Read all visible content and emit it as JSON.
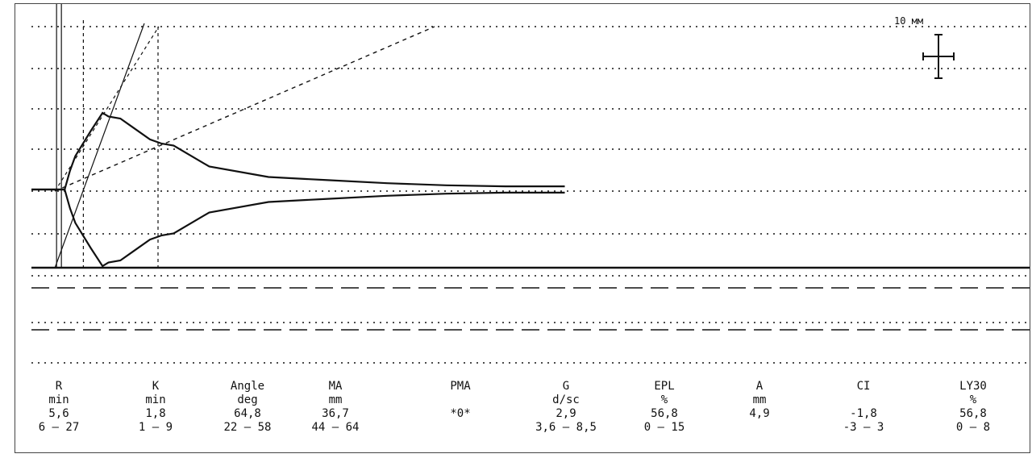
{
  "colors": {
    "line": "#111111",
    "background": "#ffffff"
  },
  "scale": {
    "label": "10 мм"
  },
  "chart_data": {
    "type": "line",
    "title": "",
    "grid": true,
    "scale_bar": "10 мм",
    "amplitude_mm": {
      "time_min": [
        0,
        2,
        4,
        5.6,
        6.5,
        7.4,
        10,
        12,
        13,
        15,
        17,
        20,
        22,
        24,
        30,
        40,
        50,
        60,
        70,
        80,
        90
      ],
      "upper_mm": [
        0,
        0,
        0,
        0,
        9,
        16,
        28,
        36.7,
        35,
        34,
        30,
        24,
        22,
        21,
        11,
        6,
        4.5,
        3,
        2,
        1.5,
        1.5
      ],
      "lower_mm": [
        0,
        0,
        0,
        0,
        -9,
        -16,
        -28,
        -36.7,
        -35,
        -34,
        -30,
        -24,
        -22,
        -21,
        -11,
        -6,
        -4.5,
        -3,
        -2,
        -1.5,
        -1.5
      ]
    }
  },
  "parameters": [
    {
      "name": "R",
      "unit": "min",
      "value": "5,6",
      "range": "6 — 27"
    },
    {
      "name": "K",
      "unit": "min",
      "value": "1,8",
      "range": "1 — 9"
    },
    {
      "name": "Angle",
      "unit": "deg",
      "value": "64,8",
      "range": "22 — 58"
    },
    {
      "name": "MA",
      "unit": "mm",
      "value": "36,7",
      "range": "44 — 64"
    },
    {
      "name": "PMA",
      "unit": "",
      "value": "*0*",
      "range": ""
    },
    {
      "name": "G",
      "unit": "d/sc",
      "value": "2,9",
      "range": "3,6 — 8,5"
    },
    {
      "name": "EPL",
      "unit": "%",
      "value": "56,8",
      "range": "0 — 15"
    },
    {
      "name": "A",
      "unit": "mm",
      "value": "4,9",
      "range": ""
    },
    {
      "name": "CI",
      "unit": "",
      "value": "-1,8",
      "range": "-3 — 3"
    },
    {
      "name": "LY30",
      "unit": "%",
      "value": "56,8",
      "range": "0 — 8"
    }
  ]
}
